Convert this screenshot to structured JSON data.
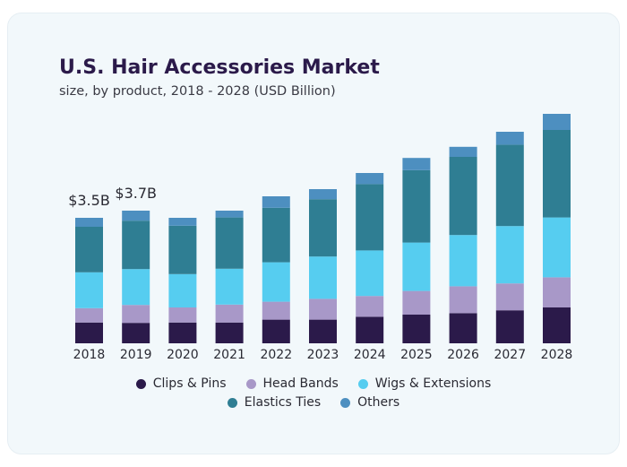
{
  "header": {
    "title": "U.S. Hair Accessories Market",
    "subtitle": "size, by product, 2018 - 2028 (USD Billion)"
  },
  "chart_data": {
    "type": "bar",
    "stacked": true,
    "title": "U.S. Hair Accessories Market",
    "subtitle": "size, by product, 2018 - 2028 (USD Billion)",
    "xlabel": "",
    "ylabel": "",
    "grid": false,
    "legend_position": "bottom",
    "categories": [
      "2018",
      "2019",
      "2020",
      "2021",
      "2022",
      "2023",
      "2024",
      "2025",
      "2026",
      "2027",
      "2028"
    ],
    "series": [
      {
        "name": "Clips & Pins",
        "color": "#2b1a4a",
        "values": [
          0.58,
          0.57,
          0.58,
          0.58,
          0.66,
          0.66,
          0.74,
          0.8,
          0.84,
          0.92,
          1.0
        ]
      },
      {
        "name": "Head Bands",
        "color": "#a898c8",
        "values": [
          0.4,
          0.5,
          0.42,
          0.5,
          0.5,
          0.58,
          0.58,
          0.66,
          0.75,
          0.75,
          0.84
        ]
      },
      {
        "name": "Wigs & Extensions",
        "color": "#56cdf0",
        "values": [
          1.0,
          1.0,
          0.93,
          1.0,
          1.1,
          1.18,
          1.27,
          1.35,
          1.43,
          1.6,
          1.67
        ]
      },
      {
        "name": "Elastics Ties",
        "color": "#2f7e93",
        "values": [
          1.27,
          1.35,
          1.35,
          1.43,
          1.52,
          1.6,
          1.85,
          2.02,
          2.18,
          2.27,
          2.44
        ]
      },
      {
        "name": "Others",
        "color": "#4d8fc0",
        "values": [
          0.25,
          0.28,
          0.22,
          0.19,
          0.32,
          0.28,
          0.31,
          0.34,
          0.28,
          0.36,
          0.45
        ]
      }
    ],
    "totals": [
      3.5,
      3.7
    ],
    "annotations": [
      {
        "category": "2018",
        "label": "$3.5B"
      },
      {
        "category": "2019",
        "label": "$3.7B"
      }
    ],
    "ylim": [
      0,
      6.4
    ]
  }
}
